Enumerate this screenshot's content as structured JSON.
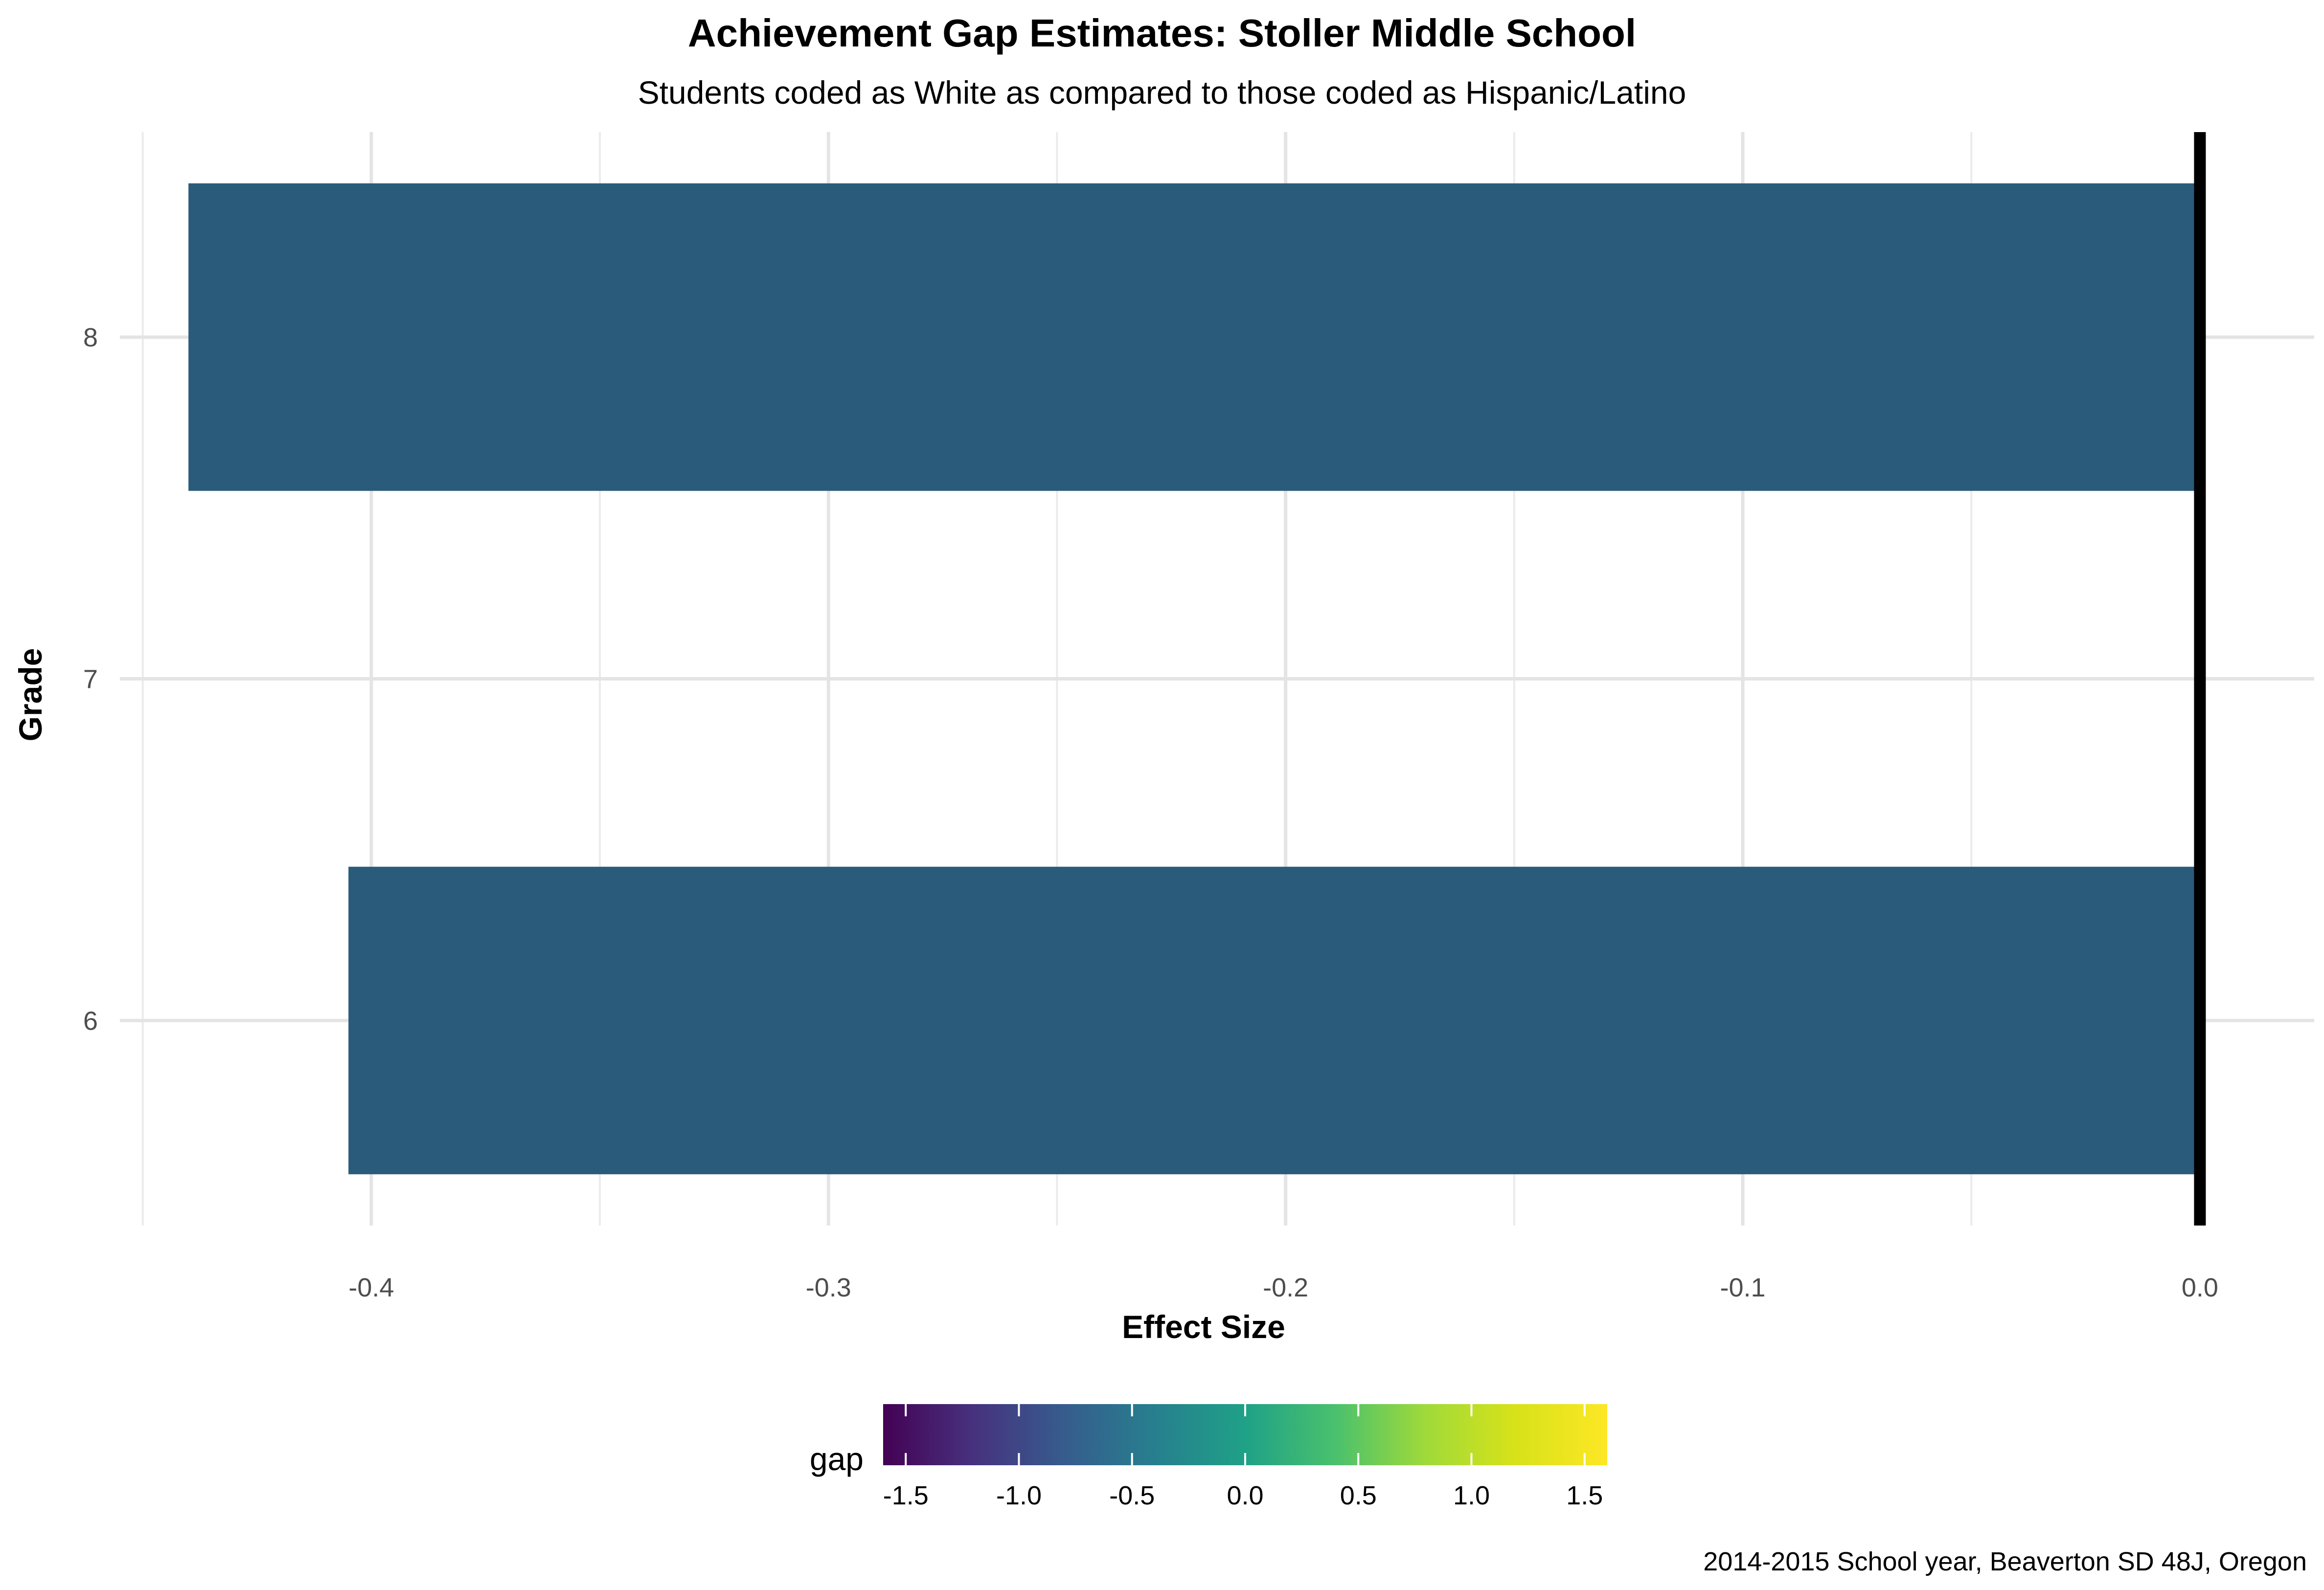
{
  "chart_data": {
    "type": "bar",
    "orientation": "horizontal",
    "title": "Achievement Gap Estimates: Stoller Middle School",
    "subtitle": "Students coded as White as compared to those coded as Hispanic/Latino",
    "caption": "2014-2015 School year, Beaverton SD 48J, Oregon",
    "xlabel": "Effect Size",
    "ylabel": "Grade",
    "categories": [
      "6",
      "7",
      "8"
    ],
    "values": [
      -0.405,
      null,
      -0.44
    ],
    "xlim": [
      -0.455,
      0.025
    ],
    "xticks": [
      -0.4,
      -0.3,
      -0.2,
      -0.1,
      0.0
    ],
    "xtick_labels": [
      "-0.4",
      "-0.3",
      "-0.2",
      "-0.1",
      "0.0"
    ],
    "reference_line": 0.0,
    "bar_color": "#2a5b7a",
    "grid": true,
    "legend": {
      "title": "gap",
      "position": "bottom",
      "type": "colorbar",
      "palette": "viridis",
      "limits": [
        -1.6,
        1.6
      ],
      "ticks": [
        -1.5,
        -1.0,
        -0.5,
        0.0,
        0.5,
        1.0,
        1.5
      ],
      "tick_labels": [
        "-1.5",
        "-1.0",
        "-0.5",
        "0.0",
        "0.5",
        "1.0",
        "1.5"
      ]
    }
  }
}
